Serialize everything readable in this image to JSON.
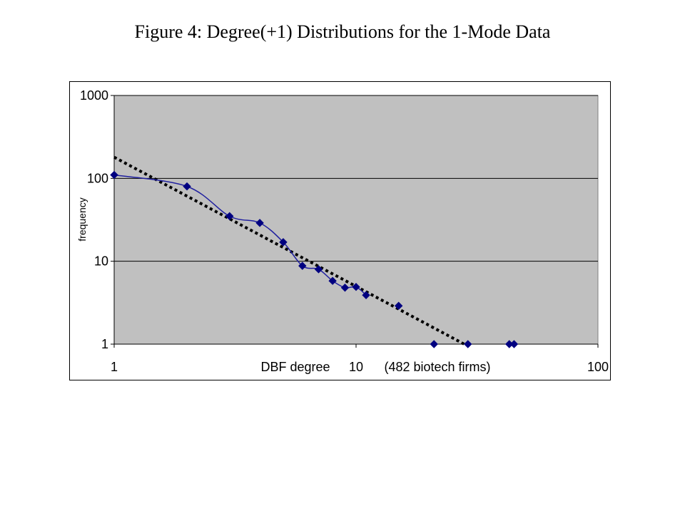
{
  "figure_title": "Figure 4: Degree(+1) Distributions for the 1-Mode Data",
  "chart_data": {
    "type": "scatter",
    "title": "",
    "xlabel": "DBF degree",
    "xlabel_note": "(482 biotech firms)",
    "ylabel": "frequency",
    "x_scale": "log",
    "y_scale": "log",
    "xlim": [
      1,
      100
    ],
    "ylim": [
      1,
      1000
    ],
    "x_ticks": [
      "1",
      "10",
      "100"
    ],
    "y_ticks": [
      "1",
      "10",
      "100",
      "1000"
    ],
    "grid": "horizontal",
    "plot_background": "#c0c0c0",
    "series": [
      {
        "color": "#1f1f9f",
        "marker": "diamond",
        "marker_color": "#000080",
        "x": [
          1,
          2,
          3,
          4,
          5,
          6,
          7,
          8,
          9,
          10,
          11,
          15,
          21,
          29,
          43,
          45
        ],
        "y": [
          110,
          80,
          35,
          29,
          17,
          8.8,
          8,
          5.8,
          4.8,
          4.9,
          3.9,
          2.9,
          1,
          1,
          1,
          1
        ],
        "smooth_until_index": 10
      }
    ],
    "trendline": {
      "style": "dotted",
      "color": "#000000",
      "x": [
        1,
        28
      ],
      "y": [
        180,
        1
      ]
    }
  }
}
